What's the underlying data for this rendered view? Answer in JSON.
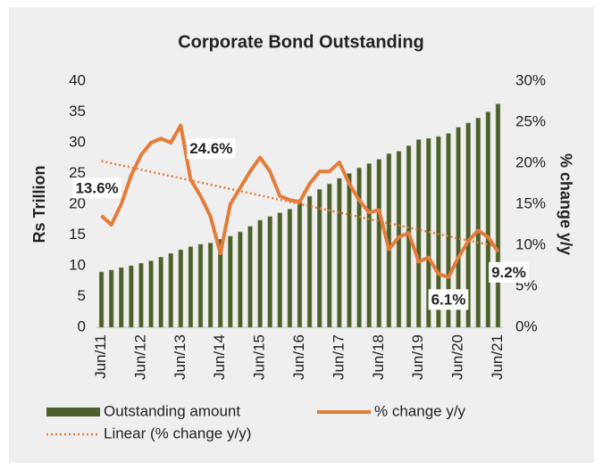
{
  "chart_data": {
    "type": "bar_line",
    "title": "Corporate Bond Outstanding",
    "ylabel": "Rs Trillion",
    "y2label": "% change y/y",
    "categories": [
      "Jun/11",
      null,
      null,
      null,
      "Jun/12",
      null,
      null,
      null,
      "Jun/13",
      null,
      null,
      null,
      "Jun/14",
      null,
      null,
      null,
      "Jun/15",
      null,
      null,
      null,
      "Jun/16",
      null,
      null,
      null,
      "Jun/17",
      null,
      null,
      null,
      "Jun/18",
      null,
      null,
      null,
      "Jun/19",
      null,
      null,
      null,
      "Jun/20",
      null,
      null,
      null,
      "Jun/21"
    ],
    "ylim": [
      0,
      40
    ],
    "yticks": [
      0,
      5,
      10,
      15,
      20,
      25,
      30,
      35,
      40
    ],
    "y2lim": [
      0,
      30
    ],
    "y2ticks": [
      {
        "value": 0,
        "label": "0%"
      },
      {
        "value": 5,
        "label": "5%"
      },
      {
        "value": 10,
        "label": "10%"
      },
      {
        "value": 15,
        "label": "15%"
      },
      {
        "value": 20,
        "label": "20%"
      },
      {
        "value": 25,
        "label": "25%"
      },
      {
        "value": 30,
        "label": "30%"
      }
    ],
    "series": [
      {
        "name": "Outstanding amount",
        "type": "bar",
        "color": "#4b5e2b",
        "values": [
          9.0,
          9.3,
          9.7,
          10.0,
          10.4,
          10.8,
          11.4,
          12.0,
          12.6,
          13.1,
          13.5,
          13.7,
          14.3,
          14.8,
          15.5,
          16.4,
          17.4,
          18.0,
          18.6,
          19.2,
          20.3,
          21.3,
          22.4,
          23.3,
          24.2,
          25.0,
          25.9,
          26.6,
          27.3,
          28.2,
          28.6,
          29.5,
          30.5,
          30.7,
          31.0,
          31.5,
          32.5,
          33.2,
          34.0,
          35.0,
          36.3
        ]
      },
      {
        "name": "% change y/y",
        "type": "line",
        "axis": "y2",
        "color": "#e47c3a",
        "values": [
          13.6,
          12.5,
          15.0,
          18.5,
          21.0,
          22.5,
          23.0,
          22.5,
          24.6,
          18.0,
          16.0,
          13.5,
          9.0,
          15.0,
          17.0,
          19.0,
          20.7,
          19.0,
          16.0,
          15.5,
          15.3,
          17.5,
          19.0,
          19.0,
          20.1,
          17.5,
          15.5,
          14.0,
          14.3,
          9.5,
          11.0,
          11.5,
          8.0,
          8.5,
          6.5,
          6.1,
          8.5,
          10.5,
          11.8,
          11.0,
          9.2
        ],
        "value_labels": [
          "13.6%",
          null,
          null,
          null,
          null,
          null,
          null,
          null,
          "24.6%",
          null,
          null,
          null,
          null,
          null,
          null,
          null,
          null,
          null,
          null,
          null,
          null,
          null,
          null,
          null,
          null,
          null,
          null,
          null,
          null,
          null,
          null,
          null,
          null,
          null,
          null,
          "6.1%",
          null,
          null,
          null,
          null,
          "9.2%"
        ]
      },
      {
        "name": "Linear (% change y/y)",
        "type": "trendline",
        "axis": "y2",
        "color": "#e47c3a",
        "of": 1
      }
    ]
  }
}
